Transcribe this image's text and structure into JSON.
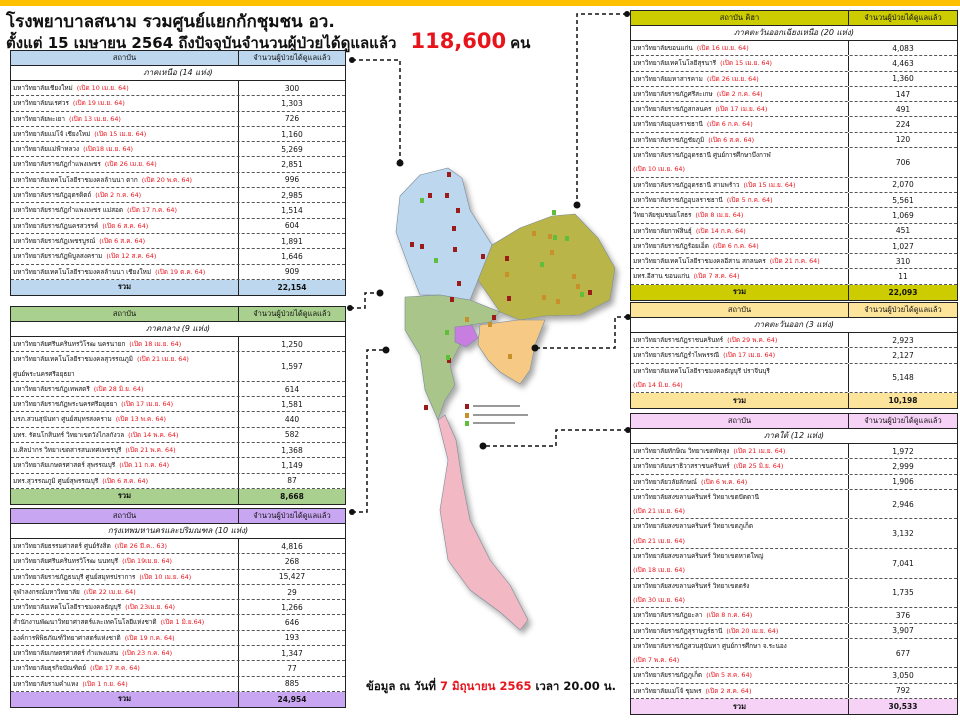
{
  "title": {
    "line1": "โรงพยาบาลสนาม รวมศูนย์แยกกักชุมชน อว.",
    "line2": "ตั้งแต่  15 เมษายน 2564 ถึงปัจจุบันจำนวนผู้ป่วยได้ดูแลแล้ว",
    "total": "118,600",
    "unit": "คน"
  },
  "colors": {
    "top_bar": "#ffc000",
    "north": "#bcd7ee",
    "central": "#a9d08e",
    "bangkok": "#c9a6f2",
    "northeast": "#cccc00",
    "east": "#fde49b",
    "south": "#f7d2f7",
    "date_text": "#e8141c"
  },
  "tables": {
    "north": {
      "col1": "สถาบัน",
      "col2": "จำนวนผู้ป่วยได้ดูแลแล้ว",
      "region": "ภาคเหนือ (14 แห่ง)",
      "total_label": "รวม",
      "total": "22,154",
      "rows": [
        {
          "name": "มหาวิทยาลัยเชียงใหม่",
          "opened": "(เปิด 10 เม.ย. 64)",
          "count": "300"
        },
        {
          "name": "มหาวิทยาลัยนเรศวร",
          "opened": "(เปิด 19 เม.ย. 64)",
          "count": "1,303"
        },
        {
          "name": "มหาวิทยาลัยพะเยา",
          "opened": "(เปิด 13 เม.ย. 64)",
          "count": "726"
        },
        {
          "name": "มหาวิทยาลัยแม่โจ้ เชียงใหม่",
          "opened": "(เปิด 15 เม.ย. 64)",
          "count": "1,160"
        },
        {
          "name": "มหาวิทยาลัยแม่ฟ้าหลวง",
          "opened": "(เปิด18 เม.ย. 64)",
          "count": "5,269"
        },
        {
          "name": "มหาวิทยาลัยราชภัฏกำแพงเพชร",
          "opened": "(เปิด 26 เม.ย. 64)",
          "count": "2,851"
        },
        {
          "name": "มหาวิทยาลัยเทคโนโลยีราชมงคลล้านนา ตาก",
          "opened": "(เปิด 20 พ.ค. 64)",
          "count": "996"
        },
        {
          "name": "มหาวิทยาลัยราชภัฏอุตรดิตถ์",
          "opened": "(เปิด 2 ก.ค. 64)",
          "count": "2,985"
        },
        {
          "name": "มหาวิทยาลัยราชภัฏกำแพงเพชร แม่สอด",
          "opened": "(เปิด 17 ก.ค. 64)",
          "count": "1,514"
        },
        {
          "name": "มหาวิทยาลัยราชภัฏนครสวรรค์",
          "opened": "(เปิด 6 ส.ค. 64)",
          "count": "604"
        },
        {
          "name": "มหาวิทยาลัยราชภัฏเพชรบูรณ์",
          "opened": "(เปิด 6 ส.ค. 64)",
          "count": "1,891"
        },
        {
          "name": "มหาวิทยาลัยราชภัฏพิบูลสงคราม",
          "opened": "(เปิด 12 ส.ค. 64)",
          "count": "1,646"
        },
        {
          "name": "มหาวิทยาลัยเทคโนโลยีราชมงคลล้านนา เชียงใหม่",
          "opened": "(เปิด 19 ต.ค. 64)",
          "count": "909"
        }
      ]
    },
    "central": {
      "col1": "สถาบัน",
      "col2": "จำนวนผู้ป่วยได้ดูแลแล้ว",
      "region": "ภาคกลาง (9 แห่ง)",
      "total_label": "รวม",
      "total": "8,668",
      "rows": [
        {
          "name": "มหาวิทยาลัยศรีนครินทรวิโรฒ นครนายก",
          "opened": "(เปิด 18 เม.ย. 64)",
          "count": "1,250"
        },
        {
          "name": "มหาวิทยาลัยเทคโนโลยีราชมงคลสุวรรณภูมิ",
          "opened": "(เปิด 21 เม.ย. 64)",
          "name2": "ศูนย์พระนครศรีอยุธยา",
          "count": "1,597"
        },
        {
          "name": "มหาวิทยาลัยราชภัฏเทพสตรี",
          "opened": "(เปิด 28 มิ.ย. 64)",
          "count": "614"
        },
        {
          "name": "มหาวิทยาลัยราชภัฏพระนครศรีอยุธยา",
          "opened": "(เปิด 17 เม.ย. 64)",
          "count": "1,581"
        },
        {
          "name": "มรภ.สวนสุนันทา ศูนย์สมุทรสงคราม",
          "opened": "(เปิด 13 พ.ค. 64)",
          "count": "440"
        },
        {
          "name": "มทร. รัตนโกสินทร์  วิทยาเขตวังไกลกังวล",
          "opened": "(เปิด 14 พ.ค. 64)",
          "count": "582"
        },
        {
          "name": "ม.ศิลปากร วิทยาเขตสารสนเทศเพชรบุรี",
          "opened": "(เปิด 21 พ.ค. 64)",
          "count": "1,368"
        },
        {
          "name": "มหาวิทยาลัยเกษตรศาสตร์ สุพรรณบุรี",
          "opened": "(เปิด 11 ก.ค. 64)",
          "count": "1,149"
        },
        {
          "name": "มทร.สุวรรณภูมิ ศูนย์สุพรรณบุรี",
          "opened": "(เปิด 6 ส.ค. 64)",
          "count": "87"
        }
      ]
    },
    "bangkok": {
      "col1": "สถาบัน",
      "col2": "จำนวนผู้ป่วยได้ดูแลแล้ว",
      "region": "กรุงเทพมหานครและปริมณฑล (10 แห่ง)",
      "total_label": "รวม",
      "total": "24,954",
      "rows": [
        {
          "name": "มหาวิทยาลัยธรรมศาสตร์ ศูนย์รังสิต",
          "opened": "(เปิด 26 มี.ค.. 63)",
          "count": "4,816"
        },
        {
          "name": "มหาวิทยาลัยศรีนครินทรวิโรฒ นนทบุรี",
          "opened": "(เปิด 19เม.ย. 64)",
          "count": "268"
        },
        {
          "name": "มหาวิทยาลัยราชภัฏธนบุรี ศูนย์สมุทรปราการ",
          "opened": "(เปิด 10 เม.ย. 64)",
          "count": "15,427"
        },
        {
          "name": "จุฬาลงกรณ์มหาวิทยาลัย",
          "opened": "(เปิด 22 เม.ย. 64)",
          "count": "29"
        },
        {
          "name": "มหาวิทยาลัยเทคโนโลยีราชมงคลธัญบุรี",
          "opened": "(เปิด 23เม.ย. 64)",
          "count": "1,266"
        },
        {
          "name": "สำนักงานพัฒนาวิทยาศาสตร์และเทคโนโลยีแห่งชาติ",
          "opened": "(เปิด 1 มิ.ย.64)",
          "count": "646"
        },
        {
          "name": "องค์การพิพิธภัณฑ์วิทยาศาสตร์แห่งชาติ",
          "opened": "(เปิด 19 ก.ค. 64)",
          "count": "193"
        },
        {
          "name": "มหาวิทยาลัยเกษตรศาสตร์ กำแพงแสน",
          "opened": "(เปิด 23 ก.ค. 64)",
          "count": "1,347"
        },
        {
          "name": "มหาวิทยาลัยธุรกิจบัณฑิตย์",
          "opened": "(เปิด 17 ส.ค. 64)",
          "count": "77"
        },
        {
          "name": "มหาวิทยาลัยรามคำแหง",
          "opened": "(เปิด 1 ก.ย. 64)",
          "count": "885"
        }
      ]
    },
    "northeast": {
      "col1": "สถาบัน คิฮา",
      "col2": "จำนวนผู้ป่วยได้ดูแลแล้ว",
      "region": "ภาคตะวันออกเฉียงเหนือ  (20 แห่ง)",
      "total_label": "รวม",
      "total": "22,093",
      "rows": [
        {
          "name": "มหาวิทยาลัยขอนแก่น",
          "opened": "(เปิด 16 เม.ย. 64)",
          "count": "4,083"
        },
        {
          "name": "มหาวิทยาลัยเทคโนโลยีสุรนารี",
          "opened": "(เปิด 15 เม.ย. 64)",
          "count": "4,463"
        },
        {
          "name": "มหาวิทยาลัยมหาสารคาม",
          "opened": "(เปิด 26 เม.ย. 64)",
          "count": "1,360"
        },
        {
          "name": "มหาวิทยาลัยราชภัฏศรีสะเกษ",
          "opened": "(เปิด 2 ก.ค. 64)",
          "count": "147"
        },
        {
          "name": "มหาวิทยาลัยราชภัฏสกลนคร",
          "opened": "(เปิด 17 เม.ย. 64)",
          "count": "491"
        },
        {
          "name": "มหาวิทยาลัยอุบลราชธานี",
          "opened": "(เปิด 6 ก.ค. 64)",
          "count": "224"
        },
        {
          "name": "มหาวิทยาลัยราชภัฏชัยภูมิ",
          "opened": "(เปิด 6 ส.ค. 64)",
          "count": "120"
        },
        {
          "name": "มหาวิทยาลัยราชภัฏอุดรธานี ศูนย์การศึกษาบึงกาฬ",
          "opened2": "(เปิด 10 เม.ย. 64)",
          "count": "706"
        },
        {
          "name": "มหาวิทยาลัยราชภัฏอุดรธานี สามพร้าว",
          "opened": "(เปิด 15 เม.ย. 64)",
          "count": "2,070"
        },
        {
          "name": "มหาวิทยาลัยราชภัฏอุบลราชธานี",
          "opened": "(เปิด 5 ก.ค. 64)",
          "count": "5,561"
        },
        {
          "name": "วิทยาลัยชุมชนยโสธร",
          "opened": "(เปิด 8 เม.ย. 64)",
          "count": "1,069"
        },
        {
          "name": "มหาวิทยาลัยกาฬสินธุ์",
          "opened": "(เปิด 14 ก.ค. 64)",
          "count": "451"
        },
        {
          "name": "มหาวิทยาลัยราชภัฏร้อยเอ็ด",
          "opened": "(เปิด 6 ก.ค. 64)",
          "count": "1,027"
        },
        {
          "name": "มหาวิทยาลัยเทคโนโลยีราชมงคลอีสาน สกลนคร",
          "opened": "(เปิด 21 ก.ค. 64)",
          "count": "310"
        },
        {
          "name": "มทร.อีสาน ขอนแก่น",
          "opened": "(เปิด 7 ส.ค. 64)",
          "count": "11"
        }
      ]
    },
    "east": {
      "col1": "สถาบัน",
      "col2": "จำนวนผู้ป่วยได้ดูแลแล้ว",
      "region": "ภาคตะวันออก (3 แห่ง)",
      "total_label": "รวม",
      "total": "10,198",
      "rows": [
        {
          "name": "มหาวิทยาลัยราชภัฏราชนครินทร์",
          "opened": "(เปิด 29 พ.ค. 64)",
          "count": "2,923"
        },
        {
          "name": "มหาวิทยาลัยราชภัฏรำไพพรรณี",
          "opened": "(เปิด 17 เม.ย. 64)",
          "count": "2,127"
        },
        {
          "name": "มหาวิทยาลัยเทคโนโลยีราชมงคลธัญบุรี ปราจีนบุรี",
          "opened2": "(เปิด 14 มิ.ย. 64)",
          "count": "5,148"
        }
      ]
    },
    "south": {
      "col1": "สถาบัน",
      "col2": "จำนวนผู้ป่วยได้ดูแลแล้ว",
      "region": "ภาคใต้  (12 แห่ง)",
      "total_label": "รวม",
      "total": "30,533",
      "rows": [
        {
          "name": "มหาวิทยาลัยทักษิณ  วิทยาเขตพัทลุง",
          "opened": "(เปิด 21 เม.ย. 64)",
          "count": "1,972"
        },
        {
          "name": "มหาวิทยาลัยนราธิวาสราชนครินทร์",
          "opened": "(เปิด 25 มิ.ย. 64)",
          "count": "2,999"
        },
        {
          "name": "มหาวิทยาลัยวลัยลักษณ์",
          "opened": "(เปิด 6 พ.ค. 64)",
          "count": "1,906"
        },
        {
          "name": "มหาวิทยาลัยสงขลานครินทร์  วิทยาเขตปัตตานี",
          "opened2": "(เปิด 21 เม.ย. 64)",
          "count": "2,946"
        },
        {
          "name": "มหาวิทยาลัยสงขลานครินทร์  วิทยาเขตภูเก็ต",
          "opened2": "(เปิด 21 เม.ย. 64)",
          "count": "3,132"
        },
        {
          "name": "มหาวิทยาลัยสงขลานครินทร์  วิทยาเขตหาดใหญ่",
          "opened2": "(เปิด 18 เม.ย. 64)",
          "count": "7,041"
        },
        {
          "name": "มหาวิทยาลัยสงขลานครินทร์  วิทยาเขตตรัง",
          "opened2": "(เปิด  30 เม.ย. 64)",
          "count": "1,735"
        },
        {
          "name": "มหาวิทยาลัยราชภัฏยะลา",
          "opened": "(เปิด 8 ก.ค. 64)",
          "count": "376"
        },
        {
          "name": "มหาวิทยาลัยราชภัฏสุราษฎร์ธานี",
          "opened": "(เปิด 20 เม.ย. 64)",
          "count": "3,907"
        },
        {
          "name": "มหาวิทยาลัยราชภัฏสวนสุนันทา  ศูนย์การศึกษา  จ.ระนอง",
          "opened2": "(เปิด 7 พ.ค. 64)",
          "count": "677"
        },
        {
          "name": "มหาวิทยาลัยราชภัฏภูเก็ต",
          "opened": "(เปิด 5 ส.ค. 64)",
          "count": "3,050"
        },
        {
          "name": "มหาวิทยาลัยแม่โจ้  ชุมพร",
          "opened": "(เปิด 2 ส.ค. 64)",
          "count": "792"
        }
      ]
    }
  },
  "map": {
    "legend_markers": [
      "#9b1b1b",
      "#c8902a",
      "#5fbf3a"
    ]
  },
  "footer": {
    "prefix": "ข้อมูล ณ วันที่",
    "date": "7 มิถุนายน 2565",
    "time": "เวลา 20.00 น."
  }
}
